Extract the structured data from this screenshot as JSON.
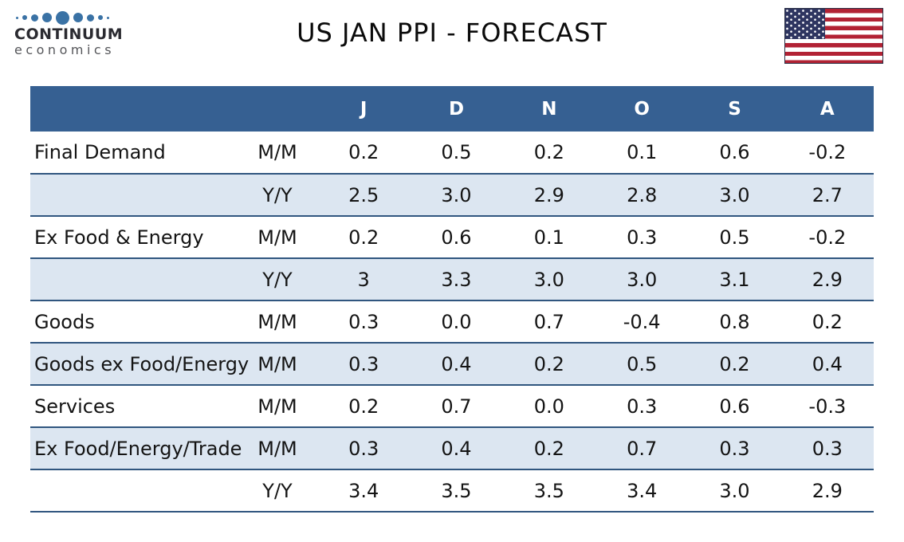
{
  "brand": {
    "name_top": "CONTINUUM",
    "name_bottom": "economics",
    "dot_color": "#3a72a5",
    "dot_sizes": [
      3,
      6,
      9,
      12,
      17,
      12,
      9,
      6,
      3
    ]
  },
  "header": {
    "title": "US JAN PPI - FORECAST"
  },
  "colors": {
    "table_header_bg": "#366092",
    "shaded_row_bg": "#dce6f1",
    "row_border": "#30567f",
    "flag_red": "#b22234",
    "flag_blue": "#2e3560"
  },
  "chart_data": {
    "type": "table",
    "title": "US JAN PPI - FORECAST",
    "columns": [
      "",
      "",
      "J",
      "D",
      "N",
      "O",
      "S",
      "A"
    ],
    "rows": [
      {
        "label": "Final Demand",
        "period": "M/M",
        "values": [
          "0.2",
          "0.5",
          "0.2",
          "0.1",
          "0.6",
          "-0.2"
        ]
      },
      {
        "label": "",
        "period": "Y/Y",
        "values": [
          "2.5",
          "3.0",
          "2.9",
          "2.8",
          "3.0",
          "2.7"
        ]
      },
      {
        "label": "Ex Food & Energy",
        "period": "M/M",
        "values": [
          "0.2",
          "0.6",
          "0.1",
          "0.3",
          "0.5",
          "-0.2"
        ]
      },
      {
        "label": "",
        "period": "Y/Y",
        "values": [
          "3",
          "3.3",
          "3.0",
          "3.0",
          "3.1",
          "2.9"
        ]
      },
      {
        "label": "Goods",
        "period": "M/M",
        "values": [
          "0.3",
          "0.0",
          "0.7",
          "-0.4",
          "0.8",
          "0.2"
        ]
      },
      {
        "label": "Goods ex Food/Energy",
        "period": "M/M",
        "values": [
          "0.3",
          "0.4",
          "0.2",
          "0.5",
          "0.2",
          "0.4"
        ]
      },
      {
        "label": "Services",
        "period": "M/M",
        "values": [
          "0.2",
          "0.7",
          "0.0",
          "0.3",
          "0.6",
          "-0.3"
        ]
      },
      {
        "label": "Ex Food/Energy/Trade",
        "period": "M/M",
        "values": [
          "0.3",
          "0.4",
          "0.2",
          "0.7",
          "0.3",
          "0.3"
        ]
      },
      {
        "label": "",
        "period": "Y/Y",
        "values": [
          "3.4",
          "3.5",
          "3.5",
          "3.4",
          "3.0",
          "2.9"
        ]
      }
    ]
  }
}
